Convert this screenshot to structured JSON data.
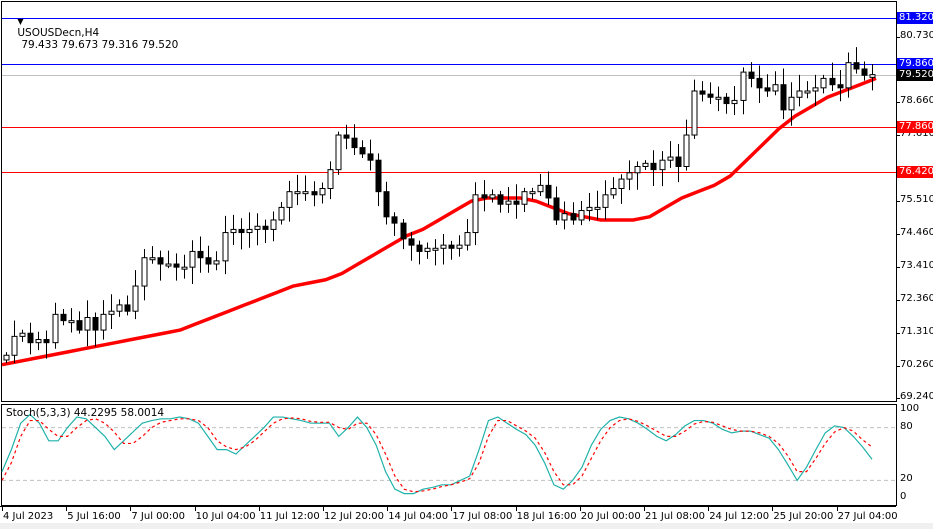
{
  "header": {
    "symbol": "USOUSDecn,H4",
    "ohlc": "79.433 79.673 79.316 79.520",
    "collapse_icon": "triangle-down-icon"
  },
  "colors": {
    "bull_fill": "#ffffff",
    "bear_fill": "#000000",
    "ma": "#ff0000",
    "level_blue": "#0000ff",
    "level_red": "#ff0000",
    "bid_line": "#c0c0c0",
    "stoch_main": "#20b2aa",
    "stoch_signal": "#ff0000",
    "grid_dash": "#c0c0c0"
  },
  "price_axis": {
    "labels": [
      "80.730",
      "78.660",
      "77.610",
      "75.510",
      "74.460",
      "73.410",
      "72.360",
      "71.310",
      "70.260",
      "69.240"
    ],
    "tags": [
      {
        "value": "81.320",
        "bg": "#0000ff"
      },
      {
        "value": "79.860",
        "bg": "#0000ff"
      },
      {
        "value": "79.520",
        "bg": "#000000"
      },
      {
        "value": "77.860",
        "bg": "#ff0000"
      },
      {
        "value": "76.420",
        "bg": "#ff0000"
      }
    ]
  },
  "horizontal_levels": [
    {
      "price": 81.32,
      "color": "#0000ff"
    },
    {
      "price": 79.86,
      "color": "#0000ff"
    },
    {
      "price": 79.52,
      "color": "#c0c0c0"
    },
    {
      "price": 77.86,
      "color": "#ff0000"
    },
    {
      "price": 76.42,
      "color": "#ff0000"
    }
  ],
  "time_axis": {
    "labels": [
      "4 Jul 2023",
      "5 Jul 16:00",
      "7 Jul 00:00",
      "10 Jul 04:00",
      "11 Jul 12:00",
      "12 Jul 20:00",
      "14 Jul 04:00",
      "17 Jul 08:00",
      "18 Jul 16:00",
      "20 Jul 00:00",
      "21 Jul 08:00",
      "24 Jul 12:00",
      "25 Jul 20:00",
      "27 Jul 04:00"
    ]
  },
  "stoch": {
    "label": "Stoch(5,3,3) 44.2295 58.0014",
    "levels": [
      "100",
      "80",
      "20",
      "0"
    ]
  },
  "chart_data": [
    {
      "type": "candlestick",
      "title": "USOUSDecn,H4 79.433 79.673 79.316 79.520",
      "xlabel": "",
      "ylabel": "",
      "ylim": [
        69.24,
        81.32
      ],
      "x_tick_labels": [
        "4 Jul 2023",
        "5 Jul 16:00",
        "7 Jul 00:00",
        "10 Jul 04:00",
        "11 Jul 12:00",
        "12 Jul 20:00",
        "14 Jul 04:00",
        "17 Jul 08:00",
        "18 Jul 16:00",
        "20 Jul 00:00",
        "21 Jul 08:00",
        "24 Jul 12:00",
        "25 Jul 20:00",
        "27 Jul 04:00"
      ],
      "y_tick_labels": [
        "80.730",
        "78.660",
        "77.610",
        "75.510",
        "74.460",
        "73.410",
        "72.360",
        "71.310",
        "70.260",
        "69.240"
      ],
      "last": {
        "open": 79.433,
        "high": 79.673,
        "low": 79.316,
        "close": 79.52
      },
      "horizontal_lines": [
        81.32,
        79.86,
        79.52,
        77.86,
        76.42
      ],
      "close_path_approx": [
        70.6,
        71.2,
        71.3,
        71.0,
        71.1,
        71.0,
        71.9,
        71.7,
        71.7,
        71.4,
        71.8,
        71.4,
        71.9,
        72.0,
        72.2,
        72.0,
        72.8,
        73.7,
        73.7,
        73.5,
        73.5,
        73.4,
        73.4,
        73.9,
        73.7,
        73.5,
        73.6,
        74.5,
        74.6,
        74.5,
        74.6,
        74.7,
        74.6,
        74.9,
        75.3,
        75.8,
        75.8,
        75.8,
        75.7,
        75.9,
        76.5,
        77.6,
        77.5,
        77.2,
        77.0,
        76.8,
        75.8,
        75.0,
        74.8,
        74.3,
        74.1,
        73.9,
        74.0,
        74.0,
        74.1,
        74.0,
        74.1,
        74.5,
        75.7,
        75.6,
        75.7,
        75.4,
        75.5,
        75.4,
        75.8,
        75.8,
        76.0,
        75.6,
        74.9,
        75.1,
        74.9,
        75.2,
        75.3,
        75.3,
        75.7,
        75.9,
        76.2,
        76.4,
        76.6,
        76.7,
        76.5,
        76.8,
        76.9,
        76.6,
        77.6,
        79.0,
        78.9,
        78.8,
        78.8,
        78.6,
        78.7,
        79.6,
        79.4,
        79.1,
        79.0,
        79.2,
        78.4,
        78.8,
        79.0,
        79.0,
        79.1,
        79.4,
        79.2,
        79.1,
        79.9,
        79.7,
        79.5,
        79.52
      ],
      "ma_path_approx": [
        70.3,
        70.4,
        70.5,
        70.6,
        70.7,
        70.8,
        70.9,
        71.0,
        71.1,
        71.2,
        71.3,
        71.4,
        71.6,
        71.8,
        72.0,
        72.2,
        72.4,
        72.6,
        72.8,
        72.9,
        73.0,
        73.2,
        73.5,
        73.8,
        74.1,
        74.4,
        74.6,
        74.9,
        75.2,
        75.5,
        75.6,
        75.6,
        75.6,
        75.5,
        75.3,
        75.1,
        75.0,
        74.9,
        74.9,
        74.9,
        75.0,
        75.3,
        75.6,
        75.8,
        76.0,
        76.3,
        76.8,
        77.3,
        77.8,
        78.2,
        78.5,
        78.8,
        79.0,
        79.2,
        79.4
      ],
      "series": [
        {
          "name": "Moving Average",
          "color": "#ff0000"
        }
      ]
    },
    {
      "type": "line",
      "title": "Stoch(5,3,3) 44.2295 58.0014",
      "ylim": [
        0,
        100
      ],
      "y_tick_labels": [
        "100",
        "80",
        "20",
        "0"
      ],
      "reference_lines": [
        80,
        20
      ],
      "series": [
        {
          "name": "%K",
          "color": "#20b2aa",
          "last": 44.2295,
          "values": [
            30,
            55,
            85,
            95,
            85,
            65,
            65,
            80,
            92,
            90,
            80,
            70,
            55,
            65,
            75,
            85,
            88,
            90,
            90,
            92,
            90,
            85,
            70,
            55,
            55,
            50,
            60,
            70,
            80,
            92,
            92,
            90,
            88,
            85,
            85,
            85,
            70,
            80,
            92,
            80,
            60,
            30,
            10,
            5,
            5,
            10,
            12,
            15,
            15,
            20,
            25,
            55,
            88,
            92,
            85,
            78,
            72,
            60,
            40,
            15,
            10,
            20,
            35,
            60,
            78,
            88,
            92,
            90,
            85,
            78,
            70,
            65,
            72,
            82,
            88,
            88,
            85,
            78,
            74,
            76,
            76,
            72,
            68,
            55,
            38,
            20,
            35,
            55,
            74,
            82,
            80,
            70,
            58,
            44
          ]
        },
        {
          "name": "%D",
          "color": "#ff0000",
          "last": 58.0014,
          "values": [
            20,
            40,
            70,
            88,
            88,
            78,
            70,
            70,
            80,
            88,
            90,
            85,
            75,
            62,
            62,
            70,
            80,
            86,
            88,
            90,
            90,
            88,
            80,
            65,
            58,
            55,
            58,
            65,
            75,
            85,
            90,
            91,
            90,
            87,
            86,
            86,
            80,
            78,
            85,
            85,
            72,
            50,
            25,
            10,
            7,
            8,
            10,
            13,
            15,
            18,
            22,
            40,
            70,
            88,
            88,
            82,
            76,
            68,
            52,
            30,
            15,
            15,
            25,
            45,
            65,
            80,
            88,
            90,
            87,
            82,
            76,
            70,
            70,
            76,
            84,
            87,
            86,
            82,
            78,
            76,
            76,
            74,
            70,
            62,
            48,
            30,
            30,
            45,
            62,
            75,
            80,
            76,
            66,
            58
          ]
        }
      ]
    }
  ]
}
